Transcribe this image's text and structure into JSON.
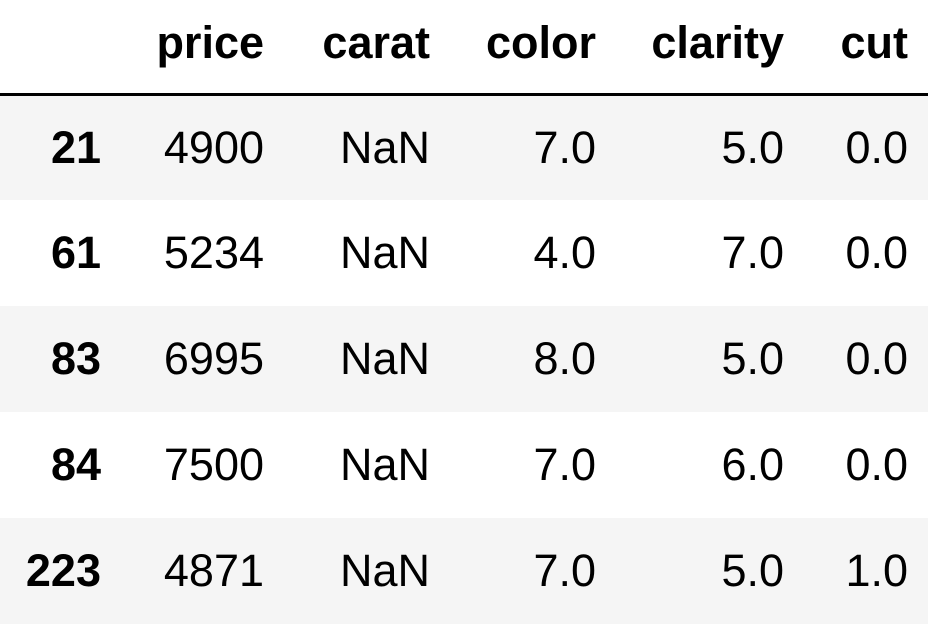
{
  "table": {
    "index_header": "",
    "columns": [
      "price",
      "carat",
      "color",
      "clarity",
      "cut"
    ],
    "rows": [
      {
        "index": "21",
        "cells": [
          "4900",
          "NaN",
          "7.0",
          "5.0",
          "0.0"
        ]
      },
      {
        "index": "61",
        "cells": [
          "5234",
          "NaN",
          "4.0",
          "7.0",
          "0.0"
        ]
      },
      {
        "index": "83",
        "cells": [
          "6995",
          "NaN",
          "8.0",
          "5.0",
          "0.0"
        ]
      },
      {
        "index": "84",
        "cells": [
          "7500",
          "NaN",
          "7.0",
          "6.0",
          "0.0"
        ]
      },
      {
        "index": "223",
        "cells": [
          "4871",
          "NaN",
          "7.0",
          "5.0",
          "1.0"
        ]
      }
    ]
  },
  "colors": {
    "striped_row": "#f5f5f5",
    "plain_row": "#ffffff",
    "header_rule": "#000000"
  }
}
